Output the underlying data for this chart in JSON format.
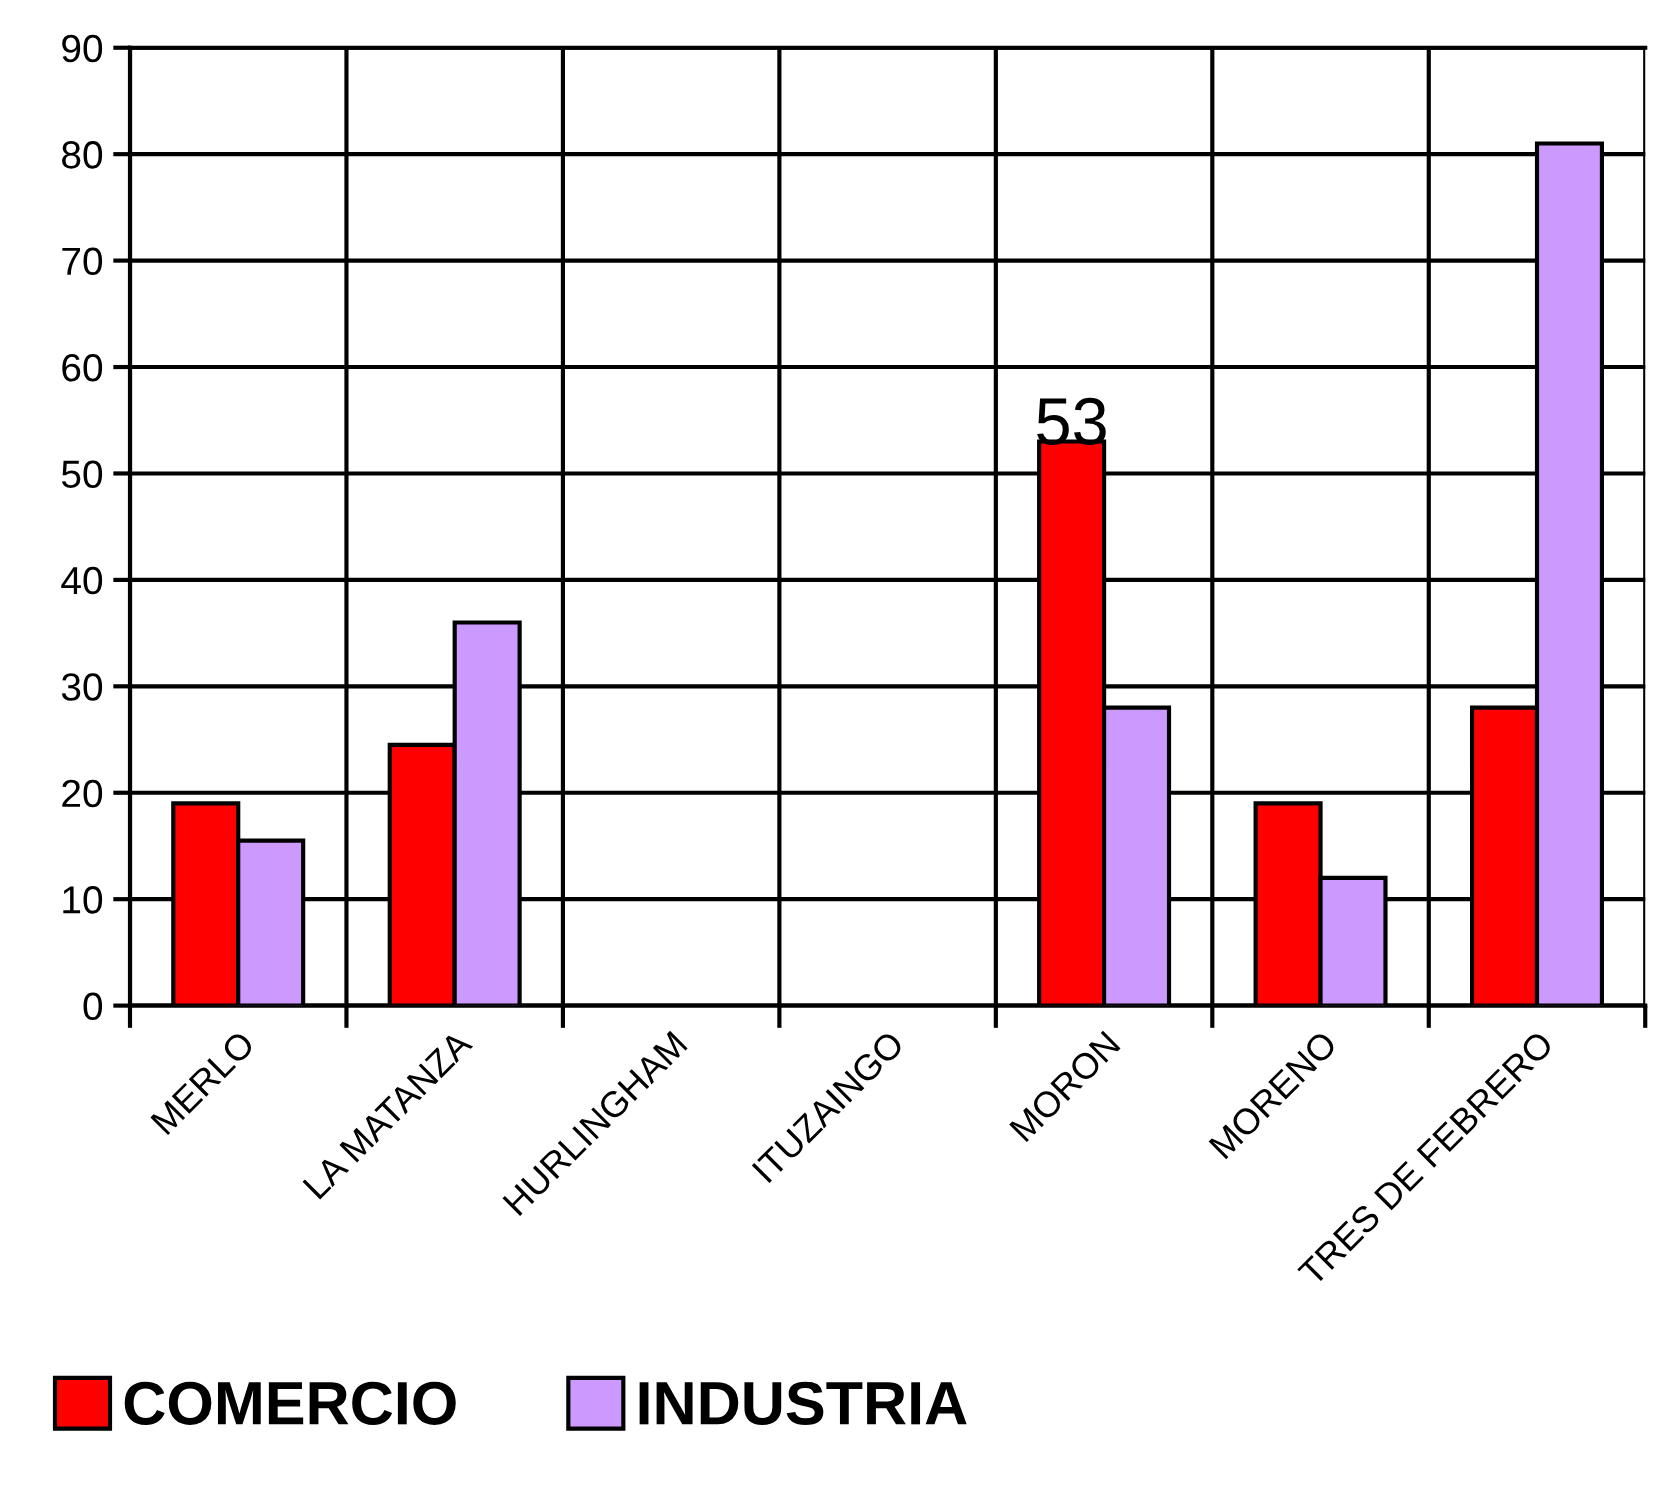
{
  "chart_data": {
    "type": "bar",
    "categories": [
      "MERLO",
      "LA MATANZA",
      "HURLINGHAM",
      "ITUZAINGO",
      "MORON",
      "MORENO",
      "TRES DE FEBRERO"
    ],
    "series": [
      {
        "name": "COMERCIO",
        "color": "#ff0000",
        "values": [
          19,
          24.5,
          null,
          null,
          53,
          19,
          28
        ],
        "value_labels": [
          null,
          null,
          null,
          null,
          "53",
          null,
          null
        ]
      },
      {
        "name": "INDUSTRIA",
        "color": "#cc99ff",
        "values": [
          15.5,
          36,
          null,
          null,
          28,
          12,
          81
        ]
      }
    ],
    "ylim": [
      0,
      90
    ],
    "yticks": [
      0,
      10,
      20,
      30,
      40,
      50,
      60,
      70,
      80,
      90
    ],
    "grid": true,
    "legend": "bottom left"
  }
}
